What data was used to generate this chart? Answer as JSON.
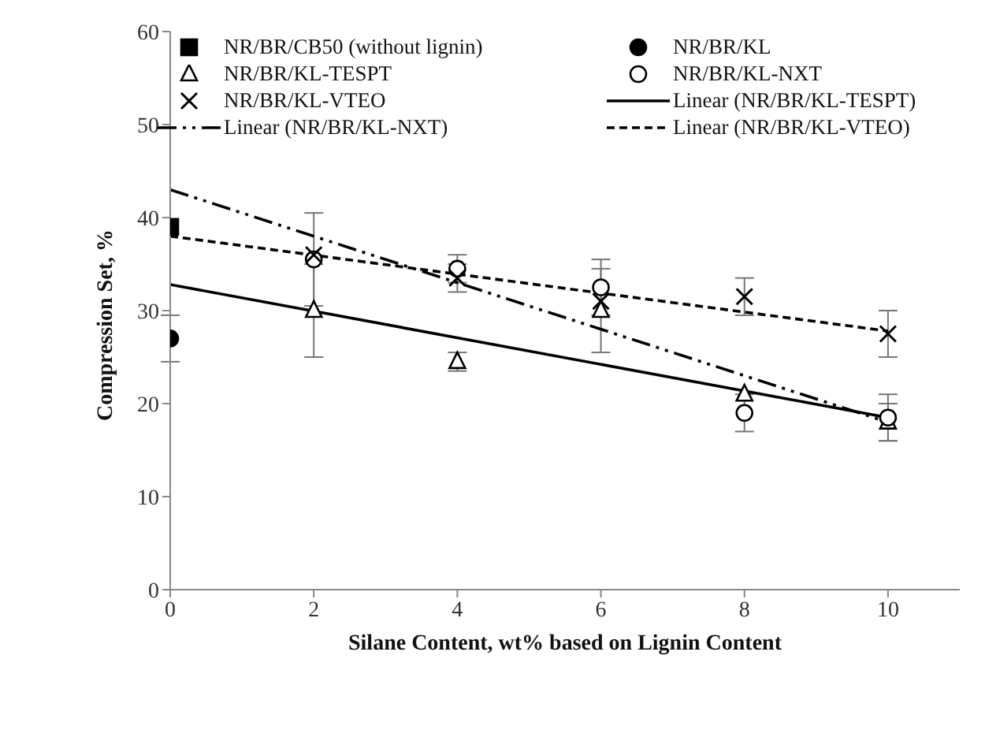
{
  "chart_data": {
    "type": "scatter",
    "xlabel": "Silane Content, wt% based on Lignin Content",
    "ylabel": "Compression Set, %",
    "xlim": [
      0,
      11
    ],
    "xticks": [
      0,
      2,
      4,
      6,
      8,
      10
    ],
    "ylim": [
      0,
      60
    ],
    "yticks": [
      0,
      10,
      20,
      30,
      40,
      50,
      60
    ],
    "grid": false,
    "legend": "top",
    "series": [
      {
        "name": "NR/BR/CB50 (without lignin)",
        "color": "#000000",
        "marker": "square",
        "x": [
          0
        ],
        "values": [
          39
        ]
      },
      {
        "name": "NR/BR/KL",
        "color": "#000000",
        "marker": "circle",
        "x": [
          0
        ],
        "values": [
          27
        ],
        "errors": [
          2.5
        ]
      },
      {
        "name": "NR/BR/KL-TESPT",
        "color": "#000000",
        "marker": "triangle",
        "x": [
          2,
          4,
          6,
          8,
          10
        ],
        "values": [
          30,
          24.5,
          30,
          21,
          18
        ],
        "errors": [
          5,
          1,
          4.5,
          null,
          2
        ]
      },
      {
        "name": "NR/BR/KL-NXT",
        "color": "#000000",
        "marker": "circle",
        "x": [
          2,
          4,
          6,
          8,
          10
        ],
        "values": [
          35.5,
          34.5,
          32.5,
          19,
          18.5
        ],
        "errors": [
          5,
          1.5,
          3,
          2,
          2.5
        ]
      },
      {
        "name": "NR/BR/KL-VTEO",
        "color": "#000000",
        "marker": "cross",
        "x": [
          2,
          4,
          6,
          8,
          10
        ],
        "values": [
          36,
          33.5,
          31,
          31.5,
          27.5
        ],
        "errors": [
          null,
          1.5,
          null,
          2,
          2.5
        ]
      },
      {
        "name": "Linear (NR/BR/KL-TESPT)",
        "type": "line",
        "color": "#000000",
        "marker": "none",
        "line_style": "solid",
        "x": [
          0,
          10
        ],
        "values": [
          32.8,
          18.5
        ]
      },
      {
        "name": "Linear (NR/BR/KL-NXT)",
        "type": "line",
        "color": "#000000",
        "marker": "none",
        "line_style": "dotted",
        "x": [
          0,
          10
        ],
        "values": [
          43,
          18
        ]
      },
      {
        "name": "Linear (NR/BR/KL-VTEO)",
        "type": "line",
        "color": "#000000",
        "marker": "none",
        "line_style": "dashed",
        "x": [
          0,
          10
        ],
        "values": [
          38,
          27.8
        ]
      }
    ]
  }
}
